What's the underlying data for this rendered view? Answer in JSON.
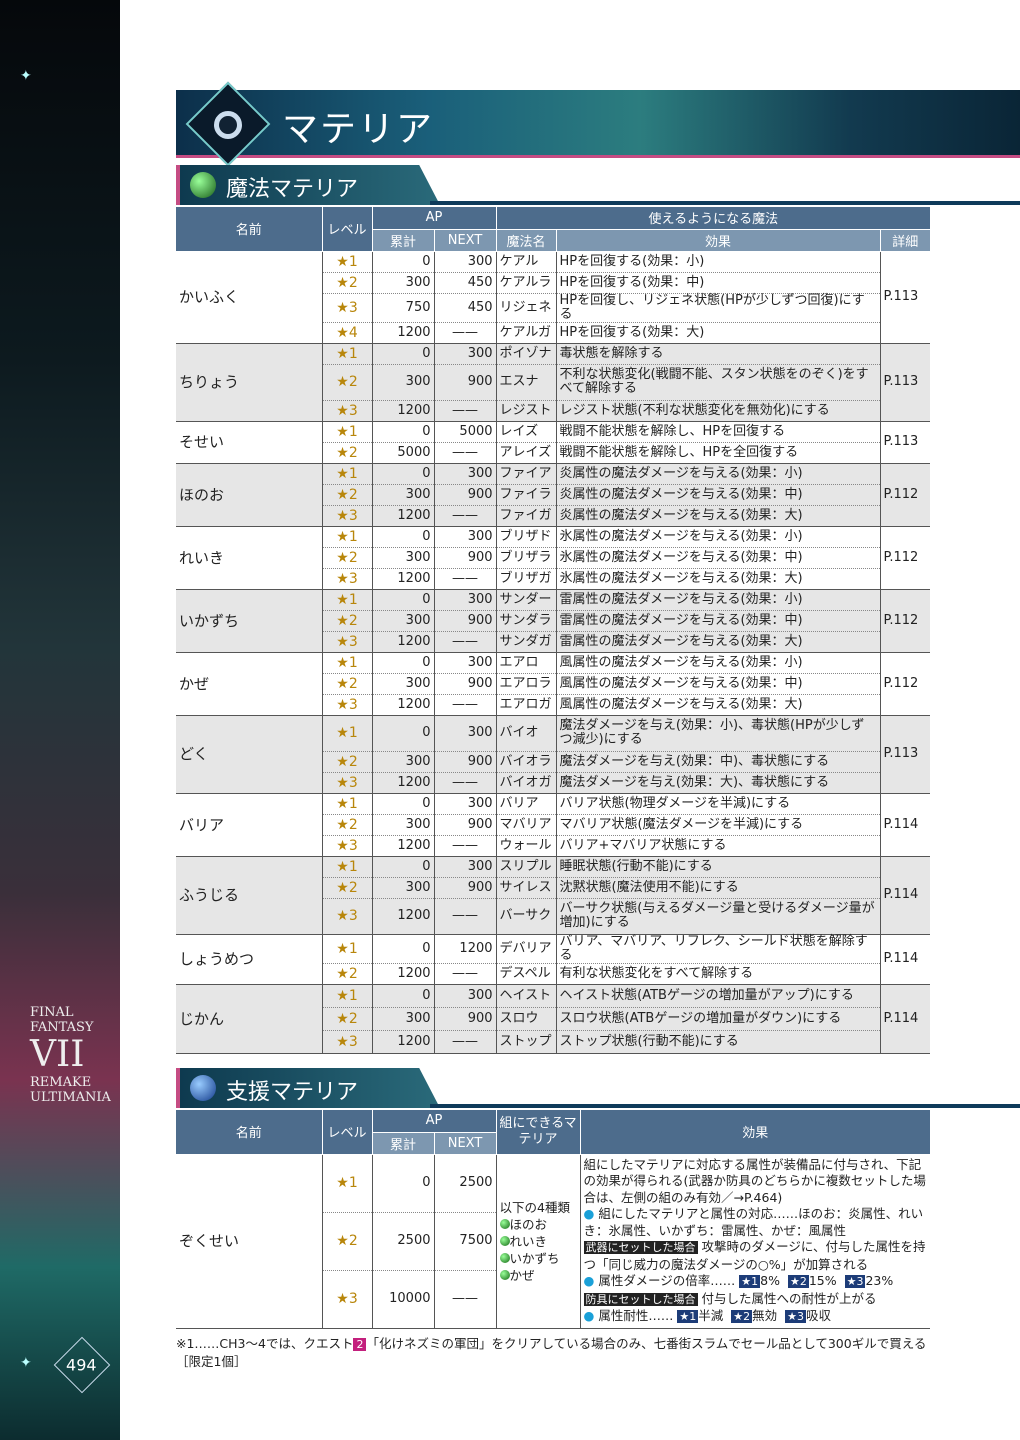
{
  "page_title": "マテリア",
  "page_number": "494",
  "logo": {
    "line1": "FINAL FANTASY",
    "line2": "VII",
    "line3": "REMAKE",
    "line4": "ULTIMANIA"
  },
  "magic": {
    "section_title": "魔法マテリア",
    "headers": {
      "name": "名前",
      "level": "レベル",
      "ap": "AP",
      "total": "累計",
      "next": "NEXT",
      "spells": "使えるようになる魔法",
      "spell_name": "魔法名",
      "effect": "効果",
      "detail": "詳細"
    },
    "groups": [
      {
        "name": "かいふく",
        "page": "P.113",
        "rows": [
          [
            "★1",
            "0",
            "300",
            "ケアル",
            "HPを回復する(効果：小)"
          ],
          [
            "★2",
            "300",
            "450",
            "ケアルラ",
            "HPを回復する(効果：中)"
          ],
          [
            "★3",
            "750",
            "450",
            "リジェネ",
            "HPを回復し、リジェネ状態(HPが少しずつ回復)にする"
          ],
          [
            "★4",
            "1200",
            "——",
            "ケアルガ",
            "HPを回復する(効果：大)"
          ]
        ]
      },
      {
        "name": "ちりょう",
        "page": "P.113",
        "rows": [
          [
            "★1",
            "0",
            "300",
            "ポイゾナ",
            "毒状態を解除する"
          ],
          [
            "★2",
            "300",
            "900",
            "エスナ",
            "不利な状態変化(戦闘不能、スタン状態をのぞく)をすべて解除する"
          ],
          [
            "★3",
            "1200",
            "——",
            "レジスト",
            "レジスト状態(不利な状態変化を無効化)にする"
          ]
        ]
      },
      {
        "name": "そせい",
        "page": "P.113",
        "rows": [
          [
            "★1",
            "0",
            "5000",
            "レイズ",
            "戦闘不能状態を解除し、HPを回復する"
          ],
          [
            "★2",
            "5000",
            "——",
            "アレイズ",
            "戦闘不能状態を解除し、HPを全回復する"
          ]
        ]
      },
      {
        "name": "ほのお",
        "page": "P.112",
        "rows": [
          [
            "★1",
            "0",
            "300",
            "ファイア",
            "炎属性の魔法ダメージを与える(効果：小)"
          ],
          [
            "★2",
            "300",
            "900",
            "ファイラ",
            "炎属性の魔法ダメージを与える(効果：中)"
          ],
          [
            "★3",
            "1200",
            "——",
            "ファイガ",
            "炎属性の魔法ダメージを与える(効果：大)"
          ]
        ]
      },
      {
        "name": "れいき",
        "page": "P.112",
        "rows": [
          [
            "★1",
            "0",
            "300",
            "ブリザド",
            "氷属性の魔法ダメージを与える(効果：小)"
          ],
          [
            "★2",
            "300",
            "900",
            "ブリザラ",
            "氷属性の魔法ダメージを与える(効果：中)"
          ],
          [
            "★3",
            "1200",
            "——",
            "ブリザガ",
            "氷属性の魔法ダメージを与える(効果：大)"
          ]
        ]
      },
      {
        "name": "いかずち",
        "page": "P.112",
        "rows": [
          [
            "★1",
            "0",
            "300",
            "サンダー",
            "雷属性の魔法ダメージを与える(効果：小)"
          ],
          [
            "★2",
            "300",
            "900",
            "サンダラ",
            "雷属性の魔法ダメージを与える(効果：中)"
          ],
          [
            "★3",
            "1200",
            "——",
            "サンダガ",
            "雷属性の魔法ダメージを与える(効果：大)"
          ]
        ]
      },
      {
        "name": "かぜ",
        "page": "P.112",
        "rows": [
          [
            "★1",
            "0",
            "300",
            "エアロ",
            "風属性の魔法ダメージを与える(効果：小)"
          ],
          [
            "★2",
            "300",
            "900",
            "エアロラ",
            "風属性の魔法ダメージを与える(効果：中)"
          ],
          [
            "★3",
            "1200",
            "——",
            "エアロガ",
            "風属性の魔法ダメージを与える(効果：大)"
          ]
        ]
      },
      {
        "name": "どく",
        "page": "P.113",
        "rows": [
          [
            "★1",
            "0",
            "300",
            "バイオ",
            "魔法ダメージを与え(効果：小)、毒状態(HPが少しずつ減少)にする"
          ],
          [
            "★2",
            "300",
            "900",
            "バイオラ",
            "魔法ダメージを与え(効果：中)、毒状態にする"
          ],
          [
            "★3",
            "1200",
            "——",
            "バイオガ",
            "魔法ダメージを与え(効果：大)、毒状態にする"
          ]
        ]
      },
      {
        "name": "バリア",
        "page": "P.114",
        "rows": [
          [
            "★1",
            "0",
            "300",
            "バリア",
            "バリア状態(物理ダメージを半減)にする"
          ],
          [
            "★2",
            "300",
            "900",
            "マバリア",
            "マバリア状態(魔法ダメージを半減)にする"
          ],
          [
            "★3",
            "1200",
            "——",
            "ウォール",
            "バリア+マバリア状態にする"
          ]
        ]
      },
      {
        "name": "ふうじる",
        "page": "P.114",
        "rows": [
          [
            "★1",
            "0",
            "300",
            "スリプル",
            "睡眠状態(行動不能)にする"
          ],
          [
            "★2",
            "300",
            "900",
            "サイレス",
            "沈黙状態(魔法使用不能)にする"
          ],
          [
            "★3",
            "1200",
            "——",
            "バーサク",
            "バーサク状態(与えるダメージ量と受けるダメージ量が増加)にする"
          ]
        ]
      },
      {
        "name": "しょうめつ",
        "page": "P.114",
        "rows": [
          [
            "★1",
            "0",
            "1200",
            "デバリア",
            "バリア、マバリア、リフレク、シールド状態を解除する"
          ],
          [
            "★2",
            "1200",
            "——",
            "デスペル",
            "有利な状態変化をすべて解除する"
          ]
        ]
      },
      {
        "name": "じかん",
        "page": "P.114",
        "rows": [
          [
            "★1",
            "0",
            "300",
            "ヘイスト",
            "ヘイスト状態(ATBゲージの増加量がアップ)にする"
          ],
          [
            "★2",
            "300",
            "900",
            "スロウ",
            "スロウ状態(ATBゲージの増加量がダウン)にする"
          ],
          [
            "★3",
            "1200",
            "——",
            "ストップ",
            "ストップ状態(行動不能)にする"
          ]
        ]
      }
    ]
  },
  "support": {
    "section_title": "支援マテリア",
    "headers": {
      "name": "名前",
      "level": "レベル",
      "ap": "AP",
      "total": "累計",
      "next": "NEXT",
      "pair": "組にできるマテリア",
      "effect": "効果"
    },
    "name": "ぞくせい",
    "rows": [
      [
        "★1",
        "0",
        "2500"
      ],
      [
        "★2",
        "2500",
        "7500"
      ],
      [
        "★3",
        "10000",
        "——"
      ]
    ],
    "pair": {
      "intro": "以下の4種類",
      "items": [
        "ほのお",
        "れいき",
        "いかずち",
        "かぜ"
      ]
    },
    "effect": {
      "p1": "組にしたマテリアに対応する属性が装備品に付与され、下記の効果が得られる(武器か防具のどちらかに複数セットした場合は、左側の組のみ有効／→P.464)",
      "p2": "組にしたマテリアと属性の対応……ほのお：炎属性、れいき：氷属性、いかずち：雷属性、かぜ：風属性",
      "weapon_badge": "武器にセットした場合",
      "weapon_text": "攻撃時のダメージに、付与した属性を持つ「同じ威力の魔法ダメージの○%」が加算される",
      "dmg_label": "属性ダメージの倍率……",
      "dmg": [
        [
          "★1",
          "8%"
        ],
        [
          "★2",
          "15%"
        ],
        [
          "★3",
          "23%"
        ]
      ],
      "armor_badge": "防具にセットした場合",
      "armor_text": "付与した属性への耐性が上がる",
      "res_label": "属性耐性……",
      "res": [
        [
          "★1",
          "半減"
        ],
        [
          "★2",
          "無効"
        ],
        [
          "★3",
          "吸収"
        ]
      ]
    }
  },
  "footnote": {
    "prefix": "※1……CH3～4では、クエスト",
    "quest_badge": "2",
    "text": "「化けネズミの軍団」をクリアしている場合のみ、七番街スラムでセール品として300ギルで買える［限定1個］"
  }
}
